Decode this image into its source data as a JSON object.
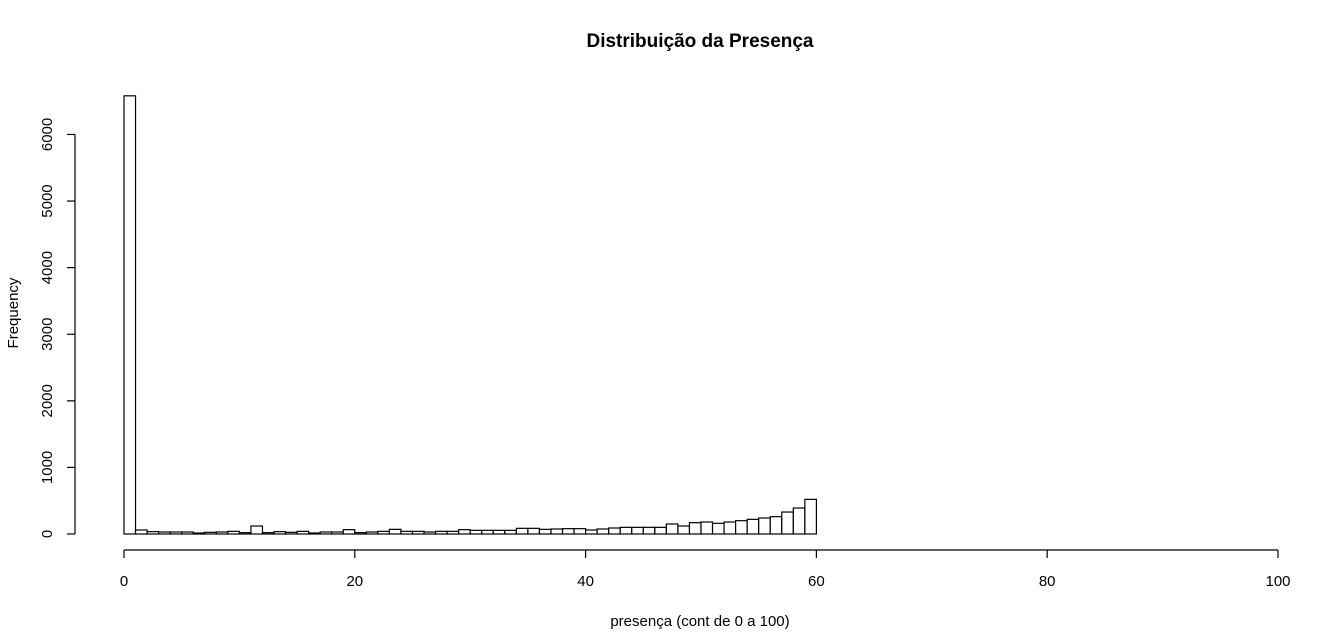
{
  "chart_data": {
    "type": "bar",
    "title": "Distribuição da Presença",
    "xlabel": "presença (cont de 0 a 100)",
    "ylabel": "Frequency",
    "xlim": [
      0,
      100
    ],
    "ylim": [
      0,
      6600
    ],
    "bin_width": 1,
    "x_ticks": [
      0,
      20,
      40,
      60,
      80,
      100
    ],
    "y_ticks": [
      0,
      1000,
      2000,
      3000,
      4000,
      5000,
      6000
    ],
    "bin_starts": [
      0,
      1,
      2,
      3,
      4,
      5,
      6,
      7,
      8,
      9,
      10,
      11,
      12,
      13,
      14,
      15,
      16,
      17,
      18,
      19,
      20,
      21,
      22,
      23,
      24,
      25,
      26,
      27,
      28,
      29,
      30,
      31,
      32,
      33,
      34,
      35,
      36,
      37,
      38,
      39,
      40,
      41,
      42,
      43,
      44,
      45,
      46,
      47,
      48,
      49,
      50,
      51,
      52,
      53,
      54,
      55,
      56,
      57,
      58,
      59
    ],
    "values": [
      6580,
      60,
      35,
      30,
      30,
      30,
      15,
      25,
      30,
      40,
      20,
      120,
      20,
      35,
      25,
      40,
      15,
      30,
      30,
      65,
      20,
      30,
      40,
      70,
      40,
      40,
      30,
      40,
      40,
      65,
      55,
      55,
      55,
      55,
      85,
      85,
      70,
      75,
      80,
      80,
      60,
      75,
      90,
      100,
      100,
      100,
      100,
      150,
      120,
      170,
      180,
      160,
      180,
      200,
      220,
      240,
      260,
      330,
      390,
      520
    ],
    "grid": false,
    "legend": "none"
  }
}
